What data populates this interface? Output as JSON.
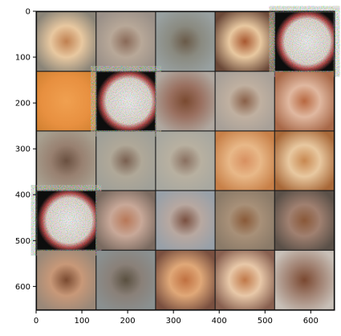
{
  "chart_data": {
    "type": "image-grid",
    "grid": {
      "rows": 5,
      "cols": 5,
      "tile_size": 128,
      "padding": 2
    },
    "xlim": [
      0,
      652
    ],
    "ylim": [
      652,
      0
    ],
    "xticks": [
      0,
      100,
      200,
      300,
      400,
      500,
      600
    ],
    "yticks": [
      0,
      100,
      200,
      300,
      400,
      500,
      600
    ],
    "xtick_labels": [
      "0",
      "100",
      "200",
      "300",
      "400",
      "500",
      "600"
    ],
    "ytick_labels": [
      "0",
      "100",
      "200",
      "300",
      "400",
      "500",
      "600"
    ],
    "tiles": [
      {
        "bg": "#8a8478",
        "center": "#c08050",
        "glow": "#e8c8a0",
        "kind": "blob"
      },
      {
        "bg": "#9a9088",
        "center": "#8a6a58",
        "glow": "#b8a898",
        "kind": "blob"
      },
      {
        "bg": "#98a0a0",
        "center": "#6a5a48",
        "glow": "#8a8a80",
        "kind": "blob"
      },
      {
        "bg": "#6a4838",
        "center": "#a85830",
        "glow": "#e8c8a0",
        "kind": "blob"
      },
      {
        "bg": "#101010",
        "center": "#f0e8e0",
        "glow": "#ffffff",
        "kind": "noisy"
      },
      {
        "bg": "#d08030",
        "center": "#e89040",
        "glow": "#f0a050",
        "kind": "plain"
      },
      {
        "bg": "#101010",
        "center": "#f0e8e0",
        "glow": "#ffffff",
        "kind": "noisy"
      },
      {
        "bg": "#b0a8a0",
        "center": "#7a4a30",
        "glow": "#9a7060",
        "kind": "blob"
      },
      {
        "bg": "#a8a098",
        "center": "#8a6048",
        "glow": "#c0b0a0",
        "kind": "blob"
      },
      {
        "bg": "#a86848",
        "center": "#b86840",
        "glow": "#e0b8a0",
        "kind": "blob"
      },
      {
        "bg": "#a8a090",
        "center": "#6a5040",
        "glow": "#988070",
        "kind": "blob"
      },
      {
        "bg": "#a0a098",
        "center": "#7a6050",
        "glow": "#b0a898",
        "kind": "blob"
      },
      {
        "bg": "#a8a8a0",
        "center": "#8a7060",
        "glow": "#b8b0a0",
        "kind": "blob"
      },
      {
        "bg": "#c88048",
        "center": "#d89060",
        "glow": "#e8b888",
        "kind": "blob"
      },
      {
        "bg": "#a86838",
        "center": "#c88850",
        "glow": "#e8c8a0",
        "kind": "blob"
      },
      {
        "bg": "#101010",
        "center": "#f0e8e0",
        "glow": "#ffffff",
        "kind": "noisy"
      },
      {
        "bg": "#7a6a60",
        "center": "#b87858",
        "glow": "#c8a898",
        "kind": "blob"
      },
      {
        "bg": "#98a0a8",
        "center": "#7a5040",
        "glow": "#b8a8a0",
        "kind": "blob"
      },
      {
        "bg": "#8a7a68",
        "center": "#8a5a38",
        "glow": "#a89078",
        "kind": "blob"
      },
      {
        "bg": "#5a5048",
        "center": "#8a5838",
        "glow": "#a08070",
        "kind": "blob"
      },
      {
        "bg": "#9a8878",
        "center": "#7a4a30",
        "glow": "#c89878",
        "kind": "blob"
      },
      {
        "bg": "#8a9090",
        "center": "#5a5040",
        "glow": "#8a8078",
        "kind": "blob"
      },
      {
        "bg": "#7a5040",
        "center": "#c07040",
        "glow": "#e0a878",
        "kind": "blob"
      },
      {
        "bg": "#886050",
        "center": "#c07848",
        "glow": "#e8c8a8",
        "kind": "blob"
      },
      {
        "bg": "#c8c0b8",
        "center": "#7a4830",
        "glow": "#a08070",
        "kind": "blob"
      }
    ]
  }
}
